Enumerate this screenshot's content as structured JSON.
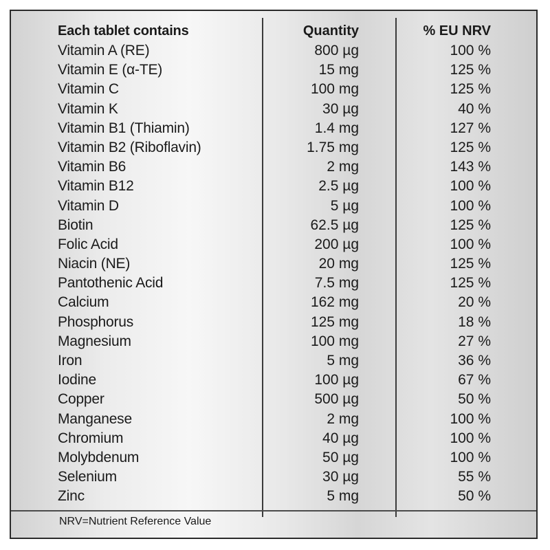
{
  "table": {
    "headers": {
      "name": "Each tablet contains",
      "quantity": "Quantity",
      "nrv": "% EU NRV"
    },
    "rows": [
      {
        "name": "Vitamin A (RE)",
        "quantity": "800 µg",
        "nrv": "100 %"
      },
      {
        "name": "Vitamin E (α-TE)",
        "quantity": "15 mg",
        "nrv": "125 %"
      },
      {
        "name": "Vitamin C",
        "quantity": "100 mg",
        "nrv": "125 %"
      },
      {
        "name": "Vitamin K",
        "quantity": "30 µg",
        "nrv": "40 %"
      },
      {
        "name": "Vitamin B1 (Thiamin)",
        "quantity": "1.4 mg",
        "nrv": "127 %"
      },
      {
        "name": "Vitamin B2 (Riboflavin)",
        "quantity": "1.75 mg",
        "nrv": "125 %"
      },
      {
        "name": "Vitamin B6",
        "quantity": "2 mg",
        "nrv": "143 %"
      },
      {
        "name": "Vitamin B12",
        "quantity": "2.5 µg",
        "nrv": "100 %"
      },
      {
        "name": "Vitamin D",
        "quantity": "5 µg",
        "nrv": "100 %"
      },
      {
        "name": "Biotin",
        "quantity": "62.5 µg",
        "nrv": "125 %"
      },
      {
        "name": "Folic Acid",
        "quantity": "200 µg",
        "nrv": "100 %"
      },
      {
        "name": "Niacin (NE)",
        "quantity": "20 mg",
        "nrv": "125 %"
      },
      {
        "name": "Pantothenic Acid",
        "quantity": "7.5 mg",
        "nrv": "125 %"
      },
      {
        "name": "Calcium",
        "quantity": "162 mg",
        "nrv": "20 %"
      },
      {
        "name": "Phosphorus",
        "quantity": "125 mg",
        "nrv": "18 %"
      },
      {
        "name": "Magnesium",
        "quantity": "100 mg",
        "nrv": "27 %"
      },
      {
        "name": "Iron",
        "quantity": "5 mg",
        "nrv": "36 %"
      },
      {
        "name": "Iodine",
        "quantity": "100 µg",
        "nrv": "67 %"
      },
      {
        "name": "Copper",
        "quantity": "500 µg",
        "nrv": "50 %"
      },
      {
        "name": "Manganese",
        "quantity": "2 mg",
        "nrv": "100 %"
      },
      {
        "name": "Chromium",
        "quantity": "40 µg",
        "nrv": "100 %"
      },
      {
        "name": "Molybdenum",
        "quantity": "50 µg",
        "nrv": "100 %"
      },
      {
        "name": "Selenium",
        "quantity": "30 µg",
        "nrv": "55 %"
      },
      {
        "name": "Zinc",
        "quantity": "5 mg",
        "nrv": "50 %"
      }
    ]
  },
  "footnote": "NRV=Nutrient Reference Value"
}
